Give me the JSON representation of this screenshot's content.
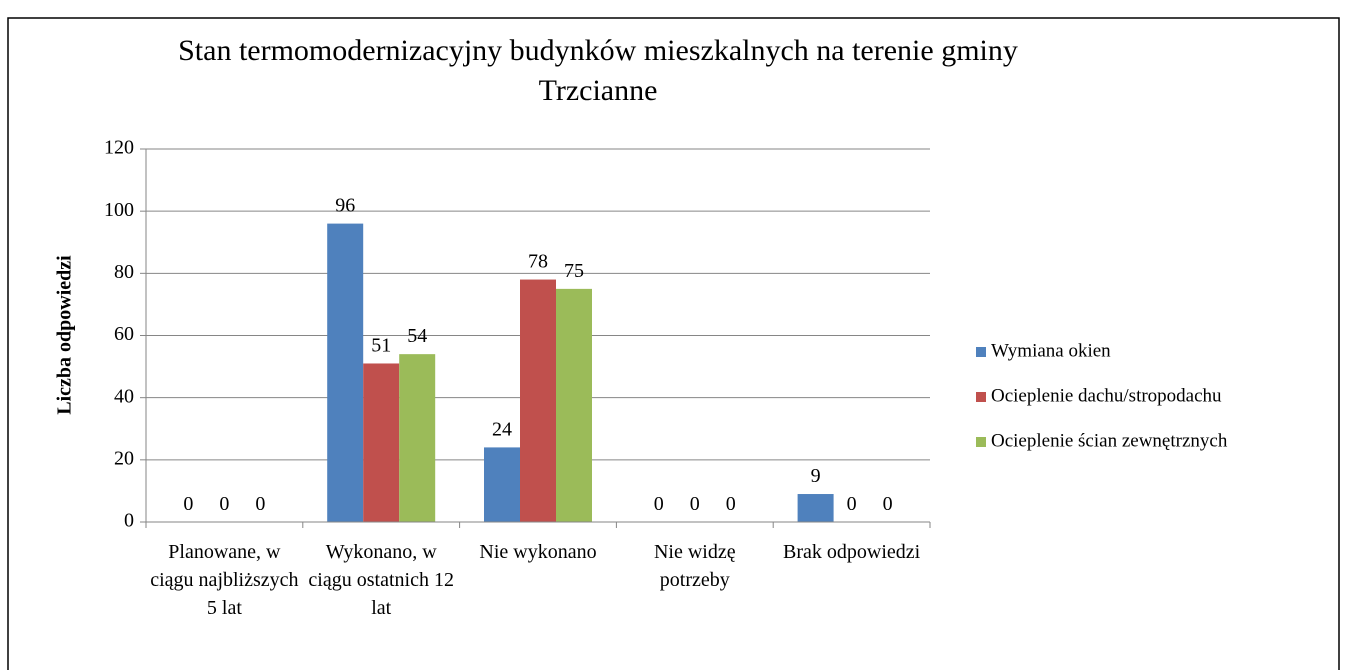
{
  "chart_data": {
    "type": "bar",
    "title": "Stan termomodernizacyjny budynków mieszkalnych na terenie gminy Trzcianne",
    "y_label": "Liczba odpowiedzi",
    "categories": [
      "Planowane, w ciągu najbliższych 5 lat",
      "Wykonano, w ciągu ostatnich 12 lat",
      "Nie wykonano",
      "Nie widzę potrzeby",
      "Brak odpowiedzi"
    ],
    "series": [
      {
        "name": "Wymiana okien",
        "color": "#4f81bd",
        "values": [
          0,
          96,
          24,
          0,
          9
        ]
      },
      {
        "name": "Ocieplenie dachu/stropodachu",
        "color": "#c0504d",
        "values": [
          0,
          51,
          78,
          0,
          0
        ]
      },
      {
        "name": "Ocieplenie ścian zewnętrznych",
        "color": "#9bbb59",
        "values": [
          0,
          54,
          75,
          0,
          0
        ]
      }
    ],
    "ylim": [
      0,
      120
    ],
    "yticks": [
      0,
      20,
      40,
      60,
      80,
      100,
      120
    ],
    "grid": true,
    "legend": "right"
  }
}
